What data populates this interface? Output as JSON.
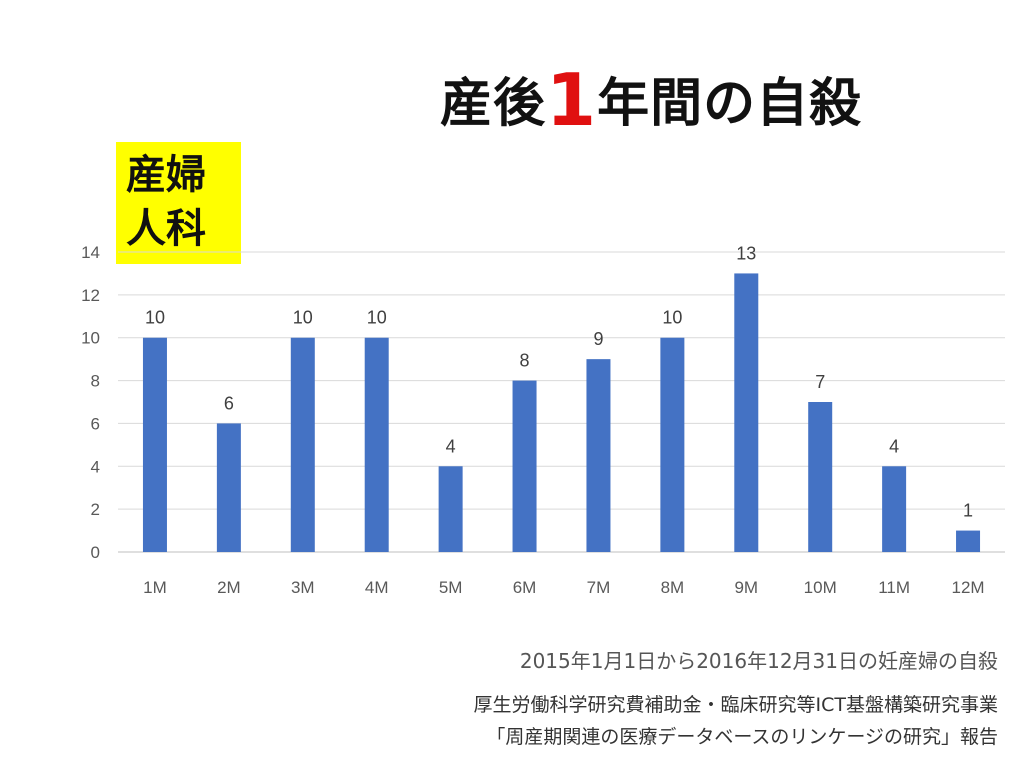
{
  "title": {
    "prefix": "産後",
    "highlight": "1",
    "suffix": "年間の自殺"
  },
  "badge": {
    "line1": "産婦",
    "line2": "人科"
  },
  "notes": {
    "period": "2015年1月1日から2016年12月31日の妊産婦の自殺",
    "funding_line1": "厚生労働科学研究費補助金・臨床研究等ICT基盤構築研究事業",
    "funding_line2": "「周産期関連の医療データベースのリンケージの研究」報告"
  },
  "colors": {
    "bar": "#4472c4",
    "highlight": "#e01010",
    "badge": "#ffff00",
    "grid": "#d9d9d9"
  },
  "chart_data": {
    "type": "bar",
    "categories": [
      "1M",
      "2M",
      "3M",
      "4M",
      "5M",
      "6M",
      "7M",
      "8M",
      "9M",
      "10M",
      "11M",
      "12M"
    ],
    "values": [
      10,
      6,
      10,
      10,
      4,
      8,
      9,
      10,
      13,
      7,
      4,
      1
    ],
    "ylim": [
      0,
      14
    ],
    "yticks": [
      0,
      2,
      4,
      6,
      8,
      10,
      12,
      14
    ],
    "grid": true,
    "data_labels": true
  }
}
